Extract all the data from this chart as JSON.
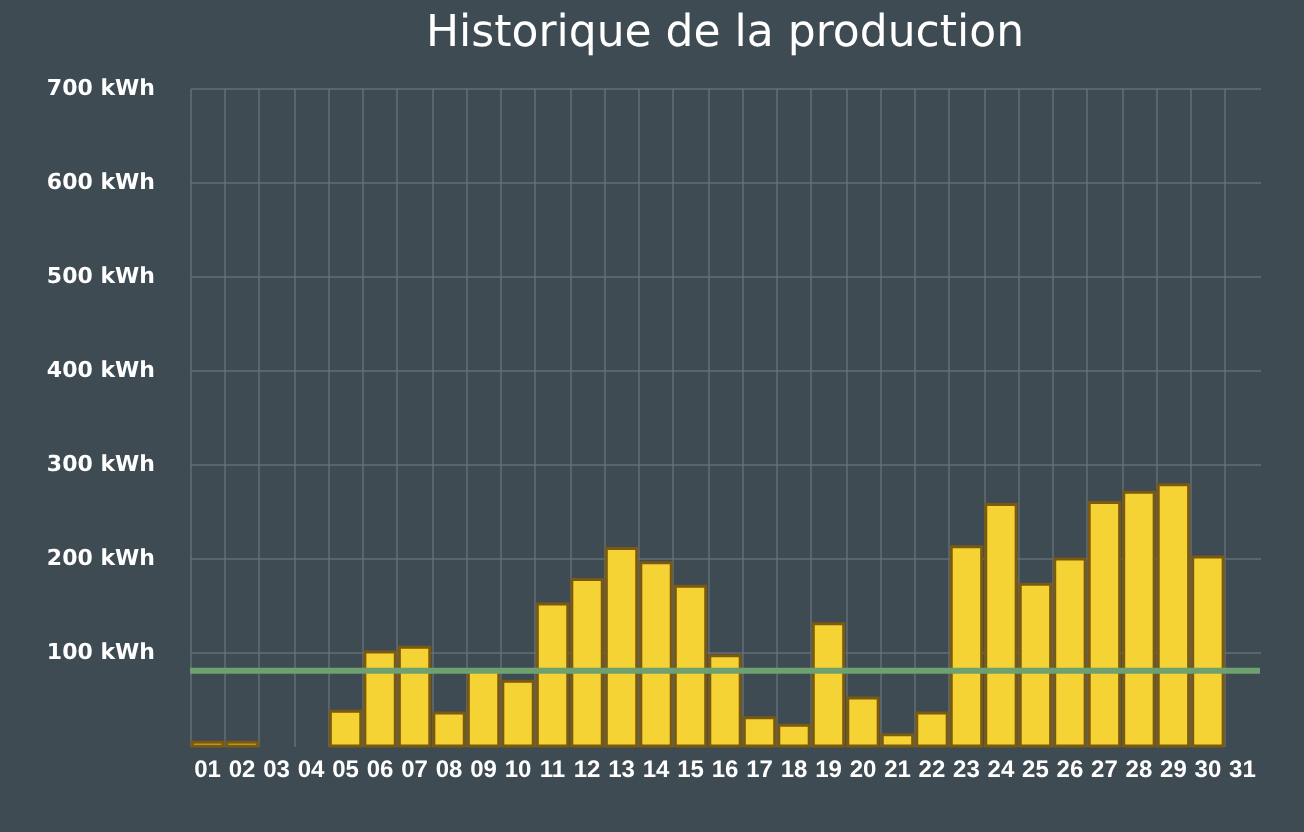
{
  "chart_data": {
    "type": "bar",
    "title": "Historique de la production",
    "categories": [
      "01",
      "02",
      "03",
      "04",
      "05",
      "06",
      "07",
      "08",
      "09",
      "10",
      "11",
      "12",
      "13",
      "14",
      "15",
      "16",
      "17",
      "18",
      "19",
      "20",
      "21",
      "22",
      "23",
      "24",
      "25",
      "26",
      "27",
      "28",
      "29",
      "30",
      "31"
    ],
    "values": [
      4,
      4,
      null,
      null,
      37,
      100,
      105,
      35,
      81,
      69,
      151,
      177,
      210,
      195,
      170,
      96,
      30,
      22,
      130,
      51,
      12,
      35,
      212,
      257,
      172,
      199,
      259,
      270,
      278,
      201,
      null
    ],
    "color": "#f6d334",
    "ylim": [
      0,
      700
    ],
    "yticks": [
      {
        "value": 100,
        "label": "100 kWh"
      },
      {
        "value": 200,
        "label": "200 kWh"
      },
      {
        "value": 300,
        "label": "300 kWh"
      },
      {
        "value": 400,
        "label": "400 kWh"
      },
      {
        "value": 500,
        "label": "500 kWh"
      },
      {
        "value": 600,
        "label": "600 kWh"
      },
      {
        "value": 700,
        "label": "700 kWh"
      }
    ],
    "ref_lines": [
      {
        "axis": "y",
        "value": 80,
        "color": "#6fa070"
      }
    ],
    "grid": true
  }
}
